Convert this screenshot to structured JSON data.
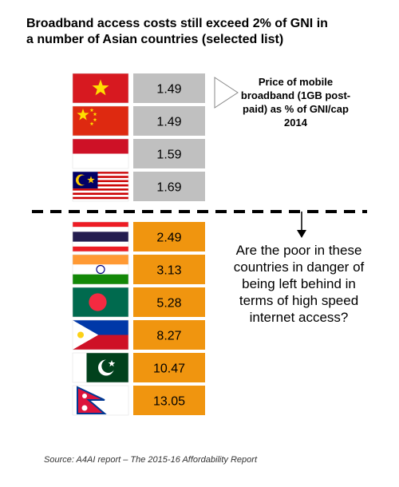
{
  "title_lines": [
    "Broadband access costs still exceed 2% of GNI in",
    "a number of Asian countries (selected list)"
  ],
  "legend_text": "Price of mobile broadband (1GB post-paid) as % of GNI/cap 2014",
  "question_text": "Are the poor in these countries in danger of  being left behind in terms of high speed internet access?",
  "source": "Source: A4AI report – The 2015-16 Affordability Report",
  "colors": {
    "below_threshold": "#c0c0c0",
    "above_threshold": "#f0950f",
    "divider": "#000000"
  },
  "chart_data": {
    "type": "table",
    "threshold_percent": 2,
    "rows": [
      {
        "flag": "vietnam-flag",
        "value": 1.49,
        "label": "1.49",
        "group": "below"
      },
      {
        "flag": "china-flag",
        "value": 1.49,
        "label": "1.49",
        "group": "below"
      },
      {
        "flag": "indonesia-flag",
        "value": 1.59,
        "label": "1.59",
        "group": "below"
      },
      {
        "flag": "malaysia-flag",
        "value": 1.69,
        "label": "1.69",
        "group": "below"
      },
      {
        "flag": "thailand-flag",
        "value": 2.49,
        "label": "2.49",
        "group": "above"
      },
      {
        "flag": "india-flag",
        "value": 3.13,
        "label": "3.13",
        "group": "above"
      },
      {
        "flag": "bangladesh-flag",
        "value": 5.28,
        "label": "5.28",
        "group": "above"
      },
      {
        "flag": "philippines-flag",
        "value": 8.27,
        "label": "8.27",
        "group": "above"
      },
      {
        "flag": "pakistan-flag",
        "value": 10.47,
        "label": "10.47",
        "group": "above"
      },
      {
        "flag": "nepal-flag",
        "value": 13.05,
        "label": "13.05",
        "group": "above"
      }
    ]
  }
}
